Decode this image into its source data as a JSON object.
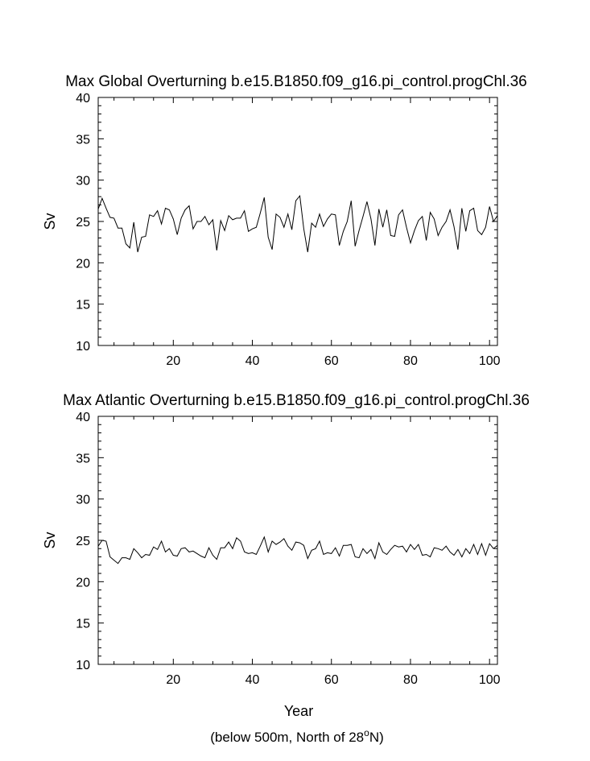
{
  "chart_data": [
    {
      "type": "line",
      "title": "Max Global Overturning b.e15.B1850.f09_g16.pi_control.progChl.36",
      "xlabel": "",
      "ylabel": "Sv",
      "xlim": [
        1,
        102
      ],
      "ylim": [
        10,
        40
      ],
      "x_ticks": [
        20,
        40,
        60,
        80,
        100
      ],
      "y_ticks": [
        10,
        15,
        20,
        25,
        30,
        35,
        40
      ],
      "grid": false,
      "x": [
        1,
        2,
        3,
        4,
        5,
        6,
        7,
        8,
        9,
        10,
        11,
        12,
        13,
        14,
        15,
        16,
        17,
        18,
        19,
        20,
        21,
        22,
        23,
        24,
        25,
        26,
        27,
        28,
        29,
        30,
        31,
        32,
        33,
        34,
        35,
        36,
        37,
        38,
        39,
        40,
        41,
        42,
        43,
        44,
        45,
        46,
        47,
        48,
        49,
        50,
        51,
        52,
        53,
        54,
        55,
        56,
        57,
        58,
        59,
        60,
        61,
        62,
        63,
        64,
        65,
        66,
        67,
        68,
        69,
        70,
        71,
        72,
        73,
        74,
        75,
        76,
        77,
        78,
        79,
        80,
        81,
        82,
        83,
        84,
        85,
        86,
        87,
        88,
        89,
        90,
        91,
        92,
        93,
        94,
        95,
        96,
        97,
        98,
        99,
        100,
        101,
        102
      ],
      "series": [
        {
          "values": [
            26.5,
            27.8,
            26.6,
            25.5,
            25.4,
            24.2,
            24.2,
            22.3,
            21.8,
            24.9,
            21.3,
            23.1,
            23.2,
            25.8,
            25.6,
            26.3,
            24.7,
            26.6,
            26.4,
            25.3,
            23.4,
            25.4,
            26.4,
            26.9,
            24.1,
            25.0,
            25.0,
            25.6,
            24.6,
            25.2,
            21.5,
            25.1,
            23.9,
            25.7,
            25.2,
            25.4,
            25.4,
            26.3,
            23.8,
            24.1,
            24.3,
            26.0,
            27.9,
            23.1,
            21.6,
            25.9,
            25.5,
            24.3,
            25.9,
            24.0,
            27.5,
            28.1,
            24.1,
            21.3,
            24.8,
            24.3,
            25.9,
            24.4,
            25.3,
            25.9,
            25.8,
            22.1,
            23.8,
            25.0,
            27.5,
            22.0,
            23.9,
            25.6,
            27.4,
            25.3,
            22.1,
            26.5,
            24.3,
            26.4,
            23.3,
            23.2,
            25.8,
            26.4,
            24.3,
            22.4,
            23.9,
            25.1,
            25.6,
            22.7,
            26.1,
            25.3,
            23.3,
            24.3,
            25.0,
            26.4,
            24.4,
            21.6,
            26.6,
            23.8,
            26.3,
            26.6,
            23.9,
            23.4,
            24.3,
            26.8,
            25.0,
            25.7
          ]
        }
      ]
    },
    {
      "type": "line",
      "title": "Max Atlantic Overturning b.e15.B1850.f09_g16.pi_control.progChl.36",
      "xlabel": "Year",
      "ylabel": "Sv",
      "xlim": [
        1,
        102
      ],
      "ylim": [
        10,
        40
      ],
      "x_ticks": [
        20,
        40,
        60,
        80,
        100
      ],
      "y_ticks": [
        10,
        15,
        20,
        25,
        30,
        35,
        40
      ],
      "grid": false,
      "x": [
        1,
        2,
        3,
        4,
        5,
        6,
        7,
        8,
        9,
        10,
        11,
        12,
        13,
        14,
        15,
        16,
        17,
        18,
        19,
        20,
        21,
        22,
        23,
        24,
        25,
        26,
        27,
        28,
        29,
        30,
        31,
        32,
        33,
        34,
        35,
        36,
        37,
        38,
        39,
        40,
        41,
        42,
        43,
        44,
        45,
        46,
        47,
        48,
        49,
        50,
        51,
        52,
        53,
        54,
        55,
        56,
        57,
        58,
        59,
        60,
        61,
        62,
        63,
        64,
        65,
        66,
        67,
        68,
        69,
        70,
        71,
        72,
        73,
        74,
        75,
        76,
        77,
        78,
        79,
        80,
        81,
        82,
        83,
        84,
        85,
        86,
        87,
        88,
        89,
        90,
        91,
        92,
        93,
        94,
        95,
        96,
        97,
        98,
        99,
        100,
        101,
        102
      ],
      "series": [
        {
          "values": [
            24.3,
            25.0,
            24.9,
            23.0,
            22.6,
            22.2,
            22.9,
            22.9,
            22.7,
            24.0,
            23.5,
            22.9,
            23.3,
            23.2,
            24.2,
            23.9,
            24.9,
            23.6,
            24.0,
            23.2,
            23.1,
            24.0,
            24.1,
            23.6,
            23.7,
            23.4,
            23.1,
            22.9,
            24.1,
            23.2,
            22.7,
            24.1,
            24.1,
            24.8,
            24.0,
            25.3,
            24.9,
            23.6,
            23.4,
            23.5,
            23.3,
            24.3,
            25.4,
            23.6,
            24.9,
            24.5,
            24.8,
            25.2,
            24.3,
            23.8,
            24.8,
            24.7,
            24.4,
            22.8,
            23.8,
            24.0,
            24.9,
            23.3,
            23.5,
            23.4,
            24.1,
            23.1,
            24.4,
            24.4,
            24.5,
            23.0,
            22.9,
            24.0,
            23.4,
            23.9,
            22.8,
            24.7,
            23.6,
            23.3,
            23.9,
            24.4,
            24.2,
            24.3,
            23.6,
            24.5,
            23.9,
            24.5,
            23.2,
            23.3,
            23.0,
            24.1,
            24.0,
            23.8,
            24.3,
            23.6,
            23.2,
            23.9,
            23.0,
            24.0,
            23.4,
            24.5,
            23.3,
            24.6,
            23.2,
            24.6,
            24.0,
            24.4
          ]
        }
      ]
    }
  ],
  "footnote": {
    "prefix": "(below 500m, North of 28",
    "superscript": "o",
    "suffix": "N)"
  }
}
